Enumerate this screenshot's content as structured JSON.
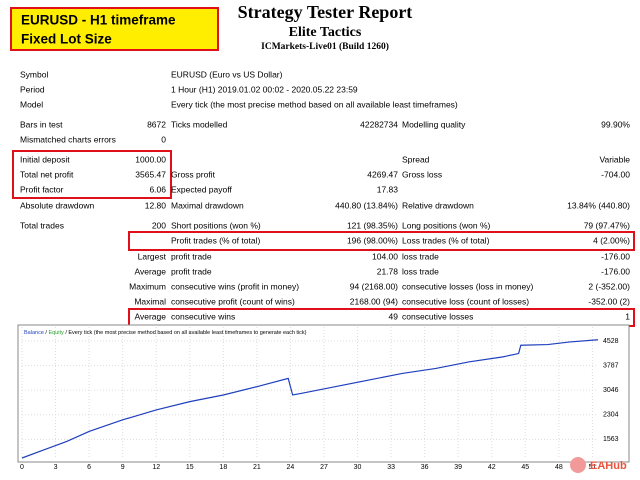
{
  "header": {
    "badge": [
      "EURUSD - H1 timeframe",
      "Fixed Lot Size"
    ],
    "title": "Strategy Tester Report",
    "subtitle": "Elite Tactics",
    "server": "ICMarkets-Live01 (Build 1260)"
  },
  "table": {
    "rows": [
      {
        "label": "Symbol",
        "text": "EURUSD (Euro vs US Dollar)"
      },
      {
        "label": "Period",
        "text": "1 Hour (H1) 2019.01.02 00:02 - 2020.05.22 23:59"
      },
      {
        "label": "Model",
        "text": "Every tick (the most precise method based on all available least timeframes)"
      },
      [
        "Bars in test",
        "8672",
        "Ticks modelled",
        "42282734",
        "Modelling quality",
        "99.90%"
      ],
      [
        "Mismatched charts errors",
        "0"
      ],
      [
        "Initial deposit",
        "1000.00",
        null,
        null,
        "Spread",
        "Variable"
      ],
      [
        "Total net profit",
        "3565.47",
        "Gross profit",
        "4269.47",
        "Gross loss",
        "-704.00"
      ],
      [
        "Profit factor",
        "6.06",
        "Expected payoff",
        "17.83"
      ],
      [
        "Absolute drawdown",
        "12.80",
        "Maximal drawdown",
        "440.80 (13.84%)",
        "Relative drawdown",
        "13.84% (440.80)"
      ],
      [
        "Total trades",
        "200",
        "Short positions (won %)",
        "121 (98.35%)",
        "Long positions (won %)",
        "79 (97.47%)"
      ],
      [
        null,
        null,
        "Profit trades (% of total)",
        "196 (98.00%)",
        "Loss trades (% of total)",
        "4 (2.00%)"
      ],
      [
        null,
        "Largest",
        "profit trade",
        "104.00",
        "loss trade",
        "-176.00"
      ],
      [
        null,
        "Average",
        "profit trade",
        "21.78",
        "loss trade",
        "-176.00"
      ],
      [
        null,
        "Maximum",
        "consecutive wins (profit in money)",
        "94 (2168.00)",
        "consecutive losses (loss in money)",
        "2 (-352.00)"
      ],
      [
        null,
        "Maximal",
        "consecutive profit (count of wins)",
        "2168.00 (94)",
        "consecutive loss (count of losses)",
        "-352.00 (2)"
      ],
      [
        null,
        "Average",
        "consecutive wins",
        "49",
        "consecutive losses",
        "1"
      ]
    ]
  },
  "chart_data": {
    "type": "line",
    "legend_equity": "Equity",
    "legend_separator": "/",
    "legend_note": "/ Every tick (the most precise method based on all available least timeframes to generate each tick)",
    "x": [
      0,
      2,
      4,
      6,
      9,
      12,
      15,
      18,
      21,
      23.8,
      24.2,
      25,
      28,
      31,
      34,
      37,
      40,
      43,
      44.4,
      44.6,
      47,
      49,
      51.5
    ],
    "series": [
      {
        "name": "Balance",
        "color": "#1f3fbf",
        "values": [
          1000,
          1250,
          1500,
          1800,
          2150,
          2450,
          2700,
          2900,
          3150,
          3400,
          2900,
          2950,
          3150,
          3350,
          3550,
          3700,
          3900,
          4050,
          4150,
          4400,
          4420,
          4500,
          4565
        ]
      }
    ],
    "xlim": [
      0,
      51.5
    ],
    "ylim": [
      1000,
      4950
    ],
    "xticks": [
      0,
      3,
      6,
      9,
      12,
      15,
      18,
      21,
      24,
      27,
      30,
      33,
      36,
      39,
      42,
      45,
      48,
      51
    ],
    "yticks": [
      1563,
      2304,
      3046,
      3787,
      4528
    ],
    "grid": true,
    "equity_color": "#2aa02a"
  },
  "watermark": "EAHub"
}
